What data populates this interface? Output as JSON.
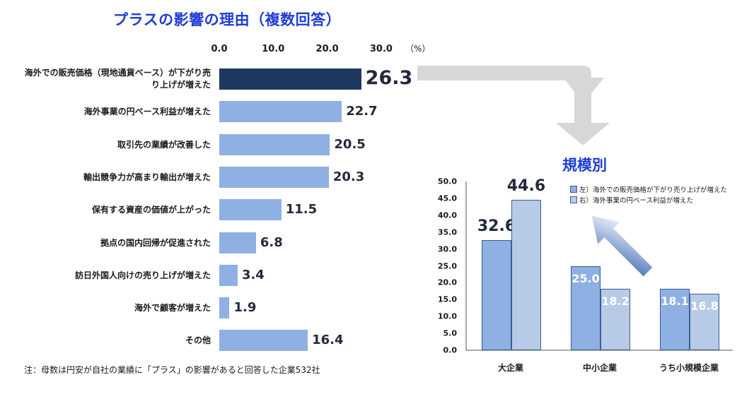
{
  "main_title": "プラスの影響の理由（複数回答）",
  "right_title": "規模別",
  "footnote": "注：母数は円安が自社の業績に「プラス」の影響があると回答した企業532社",
  "colors": {
    "title": "#1f3dd6",
    "bar": "#8eb0e2",
    "bar_highlight": "#1e3862",
    "group_left": "#8eb0e2",
    "group_right": "#b7cae6"
  },
  "chart_data": [
    {
      "type": "bar",
      "orientation": "horizontal",
      "x_unit": "（%）",
      "x_ticks": [
        "0.0",
        "10.0",
        "20.0",
        "30.0"
      ],
      "xlim": [
        0,
        35
      ],
      "categories": [
        "海外での販売価格（現地通貨ベース）が下がり売り上げが増えた",
        "海外事業の円ベース利益が増えた",
        "取引先の業績が改善した",
        "輸出競争力が高まり輸出が増えた",
        "保有する資産の価値が上がった",
        "拠点の国内回帰が促進された",
        "訪日外国人向けの売り上げが増えた",
        "海外で顧客が増えた",
        "その他"
      ],
      "values": [
        26.3,
        22.7,
        20.5,
        20.3,
        11.5,
        6.8,
        3.4,
        1.9,
        16.4
      ],
      "value_labels": [
        "26.3",
        "22.7",
        "20.5",
        "20.3",
        "11.5",
        "6.8",
        "3.4",
        "1.9",
        "16.4"
      ],
      "highlight_index": 0,
      "grid": false
    },
    {
      "type": "bar",
      "orientation": "vertical",
      "categories": [
        "大企業",
        "中小企業",
        "うち小規模企業"
      ],
      "y_ticks": [
        "0.0",
        "5.0",
        "10.0",
        "15.0",
        "20.0",
        "25.0",
        "30.0",
        "35.0",
        "40.0",
        "45.0",
        "50.0"
      ],
      "ylim": [
        0,
        50
      ],
      "series": [
        {
          "name": "左）海外での販売価格が下がり売り上げが増えた",
          "values": [
            32.6,
            25.0,
            18.1
          ],
          "labels": [
            "32.6",
            "25.0",
            "18.1"
          ]
        },
        {
          "name": "右）海外事業の円ベース利益が増えた",
          "values": [
            44.6,
            18.2,
            16.8
          ],
          "labels": [
            "44.6",
            "18.2",
            "16.8"
          ]
        }
      ],
      "legend": "top-right",
      "grid": false
    }
  ]
}
